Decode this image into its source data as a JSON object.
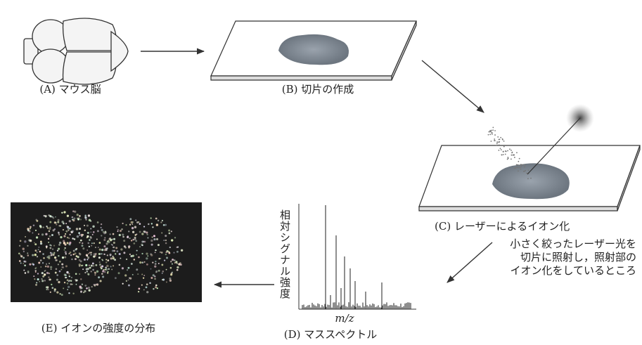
{
  "panels": {
    "a": {
      "label": "(A) マウス脳"
    },
    "b": {
      "label": "(B) 切片の作成"
    },
    "c": {
      "label": "(C) レーザーによるイオン化",
      "note": [
        "小さく絞ったレーザー光を",
        "切片に照射し，照射部の",
        "イオン化をしているところ"
      ]
    },
    "d": {
      "label": "(D) マススペクトル",
      "y_label": "相対シグナル強度",
      "x_label": "m/z"
    },
    "e": {
      "label": "(E) イオンの強度の分布"
    }
  }
}
